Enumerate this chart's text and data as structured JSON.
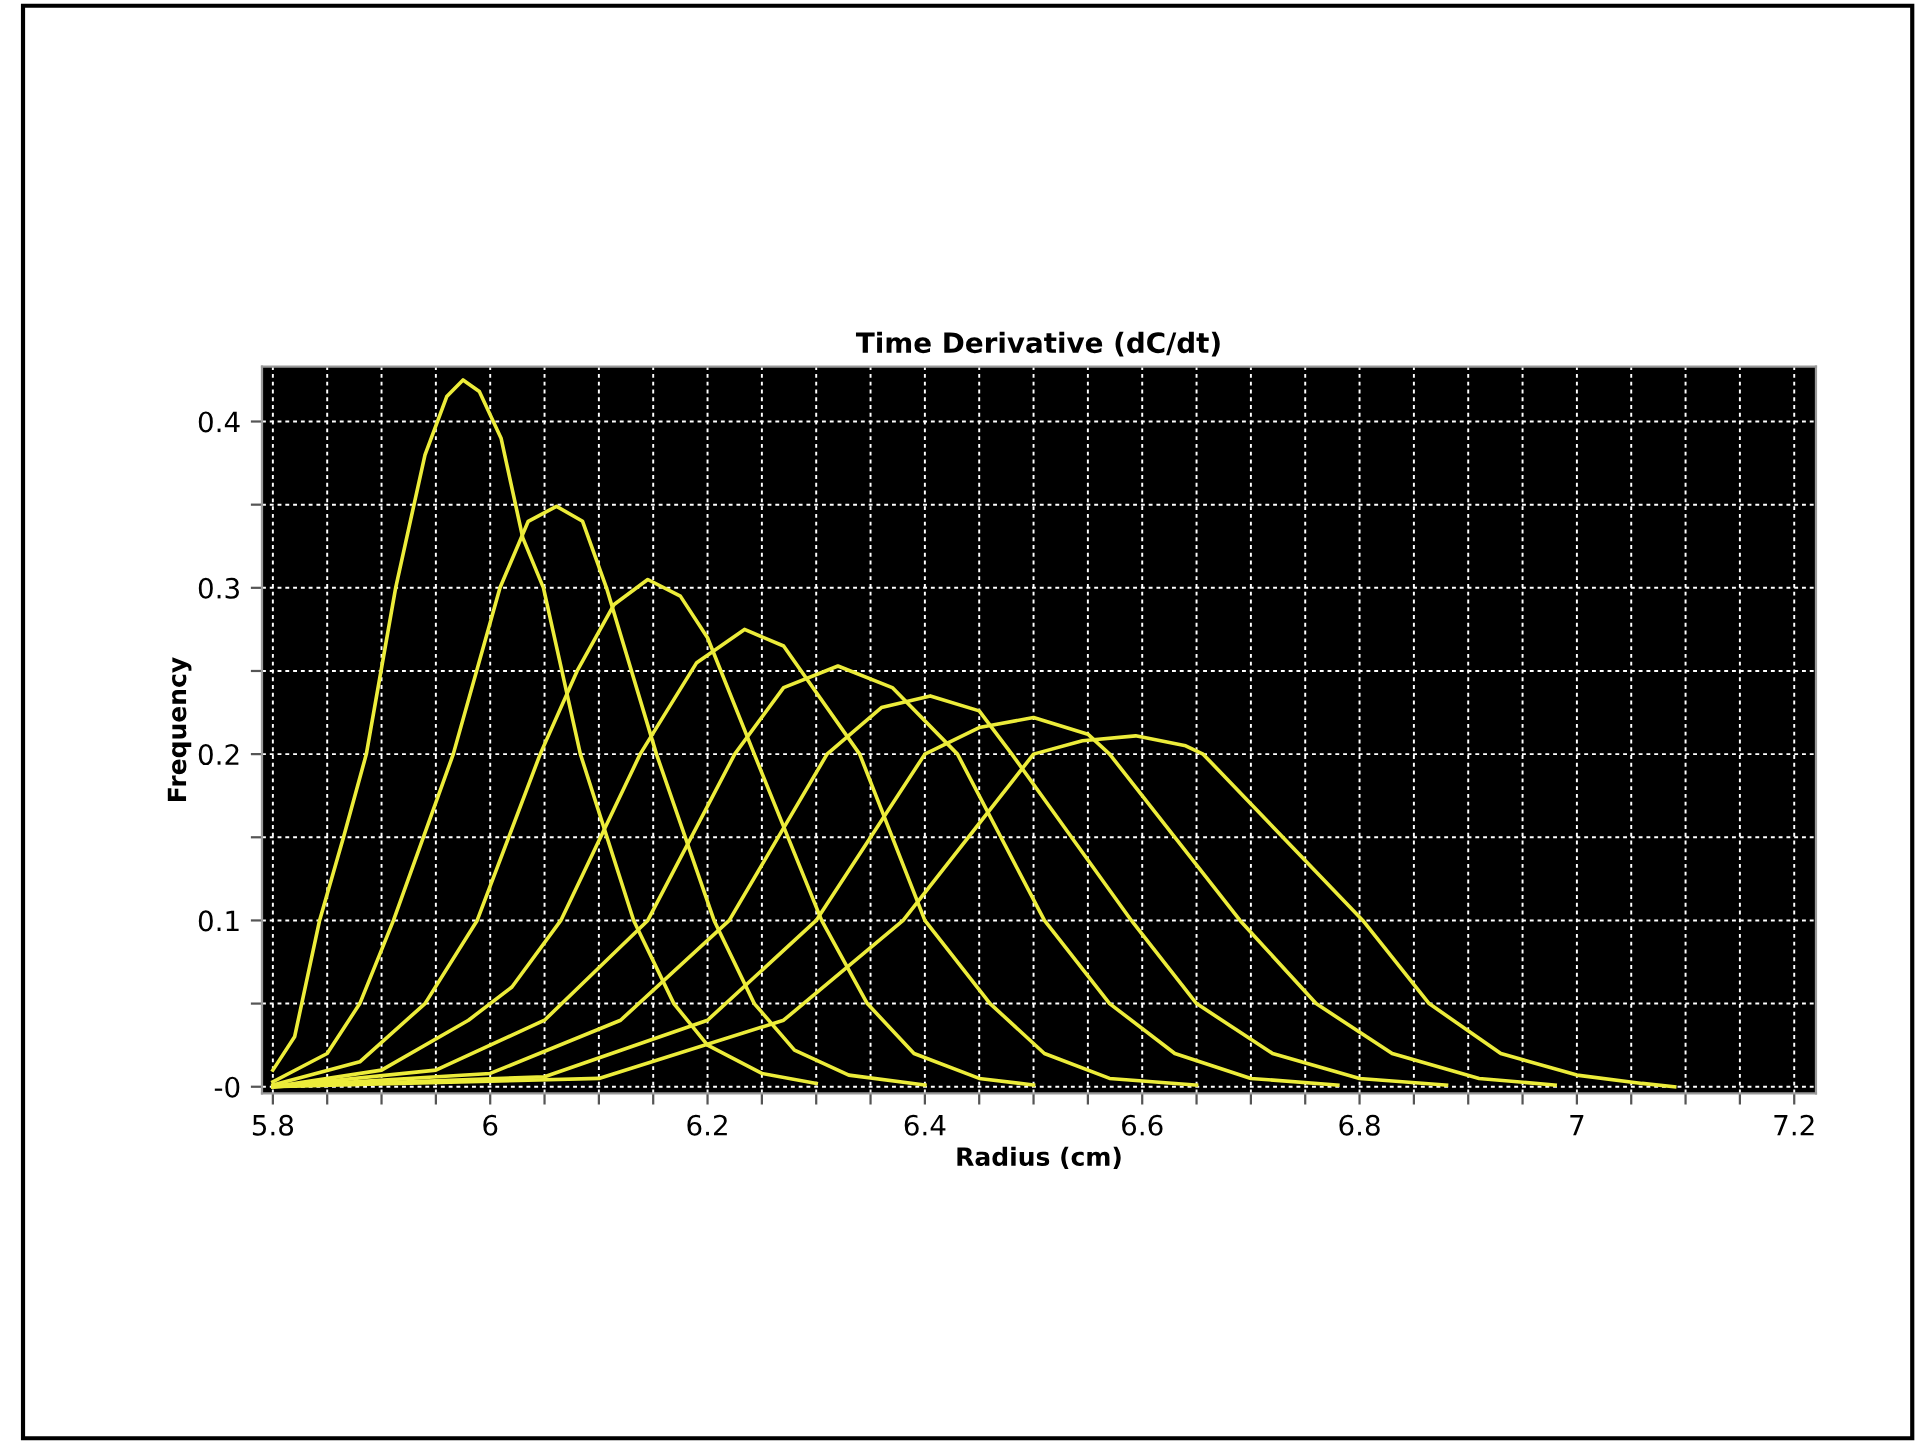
{
  "chart_data": {
    "type": "line",
    "title": "Time Derivative (dC/dt)",
    "xlabel": "Radius (cm)",
    "ylabel": "Frequency",
    "xlim": [
      5.79,
      7.22
    ],
    "ylim": [
      -0.004,
      0.433
    ],
    "xticks": [
      5.8,
      {
        "value": 5.85,
        "label": null
      },
      {
        "value": 5.9,
        "label": null
      },
      {
        "value": 5.95,
        "label": null
      },
      6,
      {
        "value": 6.05,
        "label": null
      },
      {
        "value": 6.1,
        "label": null
      },
      {
        "value": 6.15,
        "label": null
      },
      6.2,
      {
        "value": 6.25,
        "label": null
      },
      {
        "value": 6.3,
        "label": null
      },
      {
        "value": 6.35,
        "label": null
      },
      6.4,
      {
        "value": 6.45,
        "label": null
      },
      {
        "value": 6.5,
        "label": null
      },
      {
        "value": 6.55,
        "label": null
      },
      6.6,
      {
        "value": 6.65,
        "label": null
      },
      {
        "value": 6.7,
        "label": null
      },
      {
        "value": 6.75,
        "label": null
      },
      6.8,
      {
        "value": 6.85,
        "label": null
      },
      {
        "value": 6.9,
        "label": null
      },
      {
        "value": 6.95,
        "label": null
      },
      7,
      {
        "value": 7.05,
        "label": null
      },
      {
        "value": 7.1,
        "label": null
      },
      {
        "value": 7.15,
        "label": null
      },
      7.2
    ],
    "yticks": [
      {
        "value": 0,
        "label": "-0"
      },
      {
        "value": 0.05,
        "label": null
      },
      0.1,
      {
        "value": 0.15,
        "label": null
      },
      0.2,
      {
        "value": 0.25,
        "label": null
      },
      0.3,
      {
        "value": 0.35,
        "label": null
      },
      0.4
    ],
    "grid": true,
    "marker": "none",
    "line_style": "solid",
    "series": [
      {
        "color": "#ecec3a",
        "x": [
          5.8,
          5.82,
          5.843,
          5.865,
          5.886,
          5.913,
          5.94,
          5.96,
          5.975,
          5.99,
          6.01,
          6.03,
          6.049,
          6.083,
          6.132,
          6.169,
          6.2,
          6.25,
          6.3
        ],
        "values": [
          0.01,
          0.03,
          0.1,
          0.15,
          0.2,
          0.3,
          0.38,
          0.415,
          0.425,
          0.418,
          0.39,
          0.33,
          0.3,
          0.2,
          0.1,
          0.05,
          0.025,
          0.008,
          0.002
        ]
      },
      {
        "color": "#ecec3a",
        "x": [
          5.8,
          5.85,
          5.88,
          5.911,
          5.966,
          6.009,
          6.035,
          6.061,
          6.085,
          6.107,
          6.153,
          6.206,
          6.243,
          6.28,
          6.33,
          6.4
        ],
        "values": [
          0.003,
          0.02,
          0.05,
          0.1,
          0.2,
          0.3,
          0.34,
          0.349,
          0.34,
          0.3,
          0.2,
          0.1,
          0.05,
          0.022,
          0.007,
          0.001
        ]
      },
      {
        "color": "#ecec3a",
        "x": [
          5.8,
          5.88,
          5.94,
          5.988,
          6.046,
          6.08,
          6.114,
          6.145,
          6.175,
          6.2,
          6.243,
          6.305,
          6.347,
          6.39,
          6.45,
          6.5
        ],
        "values": [
          0.001,
          0.015,
          0.05,
          0.1,
          0.2,
          0.25,
          0.29,
          0.305,
          0.295,
          0.27,
          0.2,
          0.1,
          0.05,
          0.02,
          0.005,
          0.001
        ]
      },
      {
        "color": "#ecec3a",
        "x": [
          5.8,
          5.9,
          5.98,
          6.02,
          6.065,
          6.138,
          6.19,
          6.234,
          6.27,
          6.34,
          6.4,
          6.46,
          6.51,
          6.57,
          6.65
        ],
        "values": [
          0,
          0.01,
          0.04,
          0.06,
          0.1,
          0.2,
          0.255,
          0.275,
          0.265,
          0.2,
          0.1,
          0.05,
          0.02,
          0.005,
          0.001
        ]
      },
      {
        "color": "#ecec3a",
        "x": [
          5.8,
          5.95,
          6.05,
          6.145,
          6.225,
          6.27,
          6.32,
          6.37,
          6.43,
          6.51,
          6.57,
          6.63,
          6.7,
          6.78
        ],
        "values": [
          0,
          0.01,
          0.04,
          0.1,
          0.2,
          0.24,
          0.253,
          0.24,
          0.2,
          0.1,
          0.05,
          0.02,
          0.005,
          0.001
        ]
      },
      {
        "color": "#ecec3a",
        "x": [
          5.8,
          6.0,
          6.12,
          6.22,
          6.31,
          6.36,
          6.405,
          6.45,
          6.48,
          6.59,
          6.65,
          6.72,
          6.8,
          6.88
        ],
        "values": [
          0,
          0.008,
          0.04,
          0.1,
          0.2,
          0.228,
          0.235,
          0.226,
          0.2,
          0.1,
          0.05,
          0.02,
          0.005,
          0.001
        ]
      },
      {
        "color": "#ecec3a",
        "x": [
          5.8,
          6.05,
          6.2,
          6.3,
          6.4,
          6.45,
          6.5,
          6.55,
          6.57,
          6.69,
          6.76,
          6.83,
          6.91,
          6.98
        ],
        "values": [
          0,
          0.006,
          0.04,
          0.1,
          0.2,
          0.216,
          0.222,
          0.212,
          0.2,
          0.1,
          0.05,
          0.02,
          0.005,
          0.001
        ]
      },
      {
        "color": "#ecec3a",
        "x": [
          5.8,
          6.1,
          6.27,
          6.38,
          6.5,
          6.545,
          6.594,
          6.64,
          6.656,
          6.803,
          6.864,
          6.93,
          7.0,
          7.06,
          7.09
        ],
        "values": [
          0,
          0.005,
          0.04,
          0.1,
          0.2,
          0.208,
          0.211,
          0.205,
          0.2,
          0.1,
          0.05,
          0.02,
          0.007,
          0.002,
          0
        ]
      }
    ]
  }
}
